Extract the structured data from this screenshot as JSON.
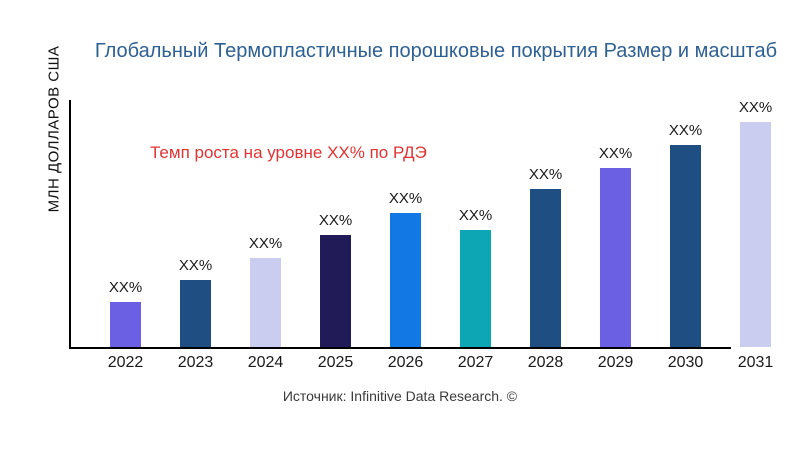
{
  "page": {
    "background": "#ffffff"
  },
  "chart_data": {
    "type": "bar",
    "title": "Глобальный Термопластичные порошковые покрытия Размер и масштаб",
    "title_color": "#2e6193",
    "ylabel": "МЛН ДОЛЛАРОВ США",
    "xlabel": "",
    "annotation": {
      "text": "Темп роста на уровне XX% по РДЭ",
      "color": "#e23333"
    },
    "source": "Источник: Infinitive Data Research. ©",
    "categories": [
      "2022",
      "2023",
      "2024",
      "2025",
      "2026",
      "2027",
      "2028",
      "2029",
      "2030",
      "2031"
    ],
    "values": [
      45,
      67,
      89,
      112,
      135,
      117,
      159,
      180,
      203,
      226
    ],
    "value_labels": [
      "XX%",
      "XX%",
      "XX%",
      "XX%",
      "XX%",
      "XX%",
      "XX%",
      "XX%",
      "XX%",
      "XX%"
    ],
    "bar_colors": [
      "#6b5fe3",
      "#1f4e82",
      "#cbcdf0",
      "#211b58",
      "#1178e4",
      "#0da6b5",
      "#1f4e82",
      "#6b5fe3",
      "#1f4e82",
      "#cbcdf0"
    ],
    "ylim": [
      0,
      250
    ],
    "axis_color": "#000000",
    "grid": false,
    "legend": null
  }
}
